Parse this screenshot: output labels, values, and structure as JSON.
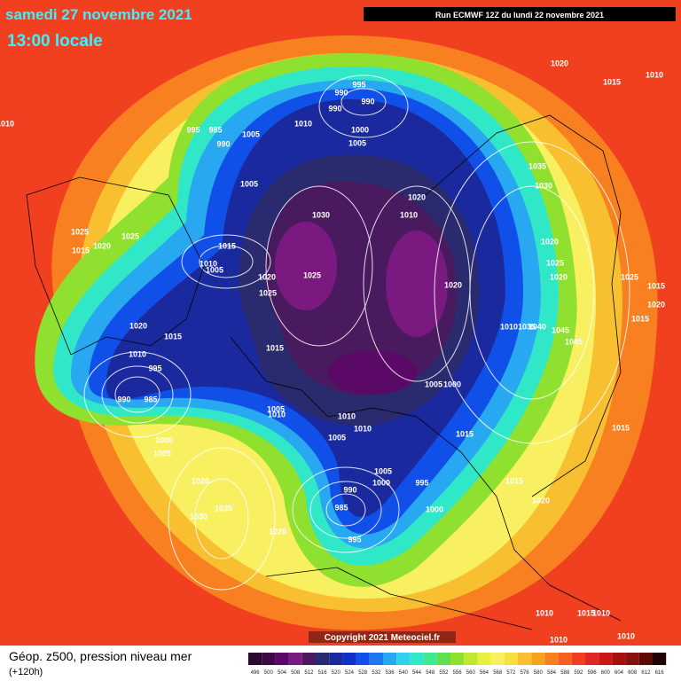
{
  "header": {
    "title": "samedi 27 novembre 2021",
    "subtitle": "13:00 locale",
    "run": "Run ECMWF 12Z du lundi 22 novembre 2021"
  },
  "copyright": "Copyright 2021 Meteociel.fr",
  "caption": {
    "line1": "Géop. z500, pression niveau mer",
    "line2": "(+120h)"
  },
  "colorbar": {
    "labels": [
      "496",
      "500",
      "504",
      "508",
      "512",
      "516",
      "520",
      "524",
      "528",
      "532",
      "536",
      "540",
      "544",
      "548",
      "552",
      "556",
      "560",
      "564",
      "568",
      "572",
      "576",
      "580",
      "584",
      "588",
      "592",
      "596",
      "600",
      "604",
      "608",
      "612",
      "616"
    ],
    "colors": [
      "#2a0a2e",
      "#3d0a45",
      "#5a0a66",
      "#7a1a80",
      "#4a1a5e",
      "#2a2a6e",
      "#1a2a9e",
      "#1030c8",
      "#1050e8",
      "#1e78f0",
      "#28a8f0",
      "#30d0f0",
      "#30e8c8",
      "#40e890",
      "#60e050",
      "#90e030",
      "#c0e830",
      "#e8f040",
      "#f8f060",
      "#f8e040",
      "#f8c030",
      "#f8a020",
      "#f88020",
      "#f86020",
      "#f04020",
      "#e02820",
      "#c81818",
      "#a81010",
      "#881010",
      "#600808",
      "#200404"
    ]
  },
  "isobar_labels": [
    "995",
    "990",
    "990",
    "990",
    "995",
    "985",
    "990",
    "1005",
    "1010",
    "1000",
    "1005",
    "1020",
    "1015",
    "1010",
    "1010",
    "1035",
    "1030",
    "1005",
    "1030",
    "1020",
    "1010",
    "1025",
    "1020",
    "1025",
    "1015",
    "1015",
    "1010",
    "1005",
    "1020",
    "1025",
    "1025",
    "1020",
    "1025",
    "1020",
    "1020",
    "1025",
    "1015",
    "1020",
    "1015",
    "1010",
    "1035",
    "1040",
    "1045",
    "1045",
    "1020",
    "1015",
    "1015",
    "1010",
    "995",
    "990",
    "985",
    "1005",
    "1000",
    "1005",
    "1010",
    "1010",
    "1010",
    "1005",
    "1015",
    "1015",
    "1000",
    "1005",
    "1005",
    "1000",
    "995",
    "1015",
    "1020",
    "1020",
    "990",
    "985",
    "1035",
    "1030",
    "1000",
    "1025",
    "995",
    "1010",
    "1015",
    "1010",
    "1010",
    "1010"
  ]
}
